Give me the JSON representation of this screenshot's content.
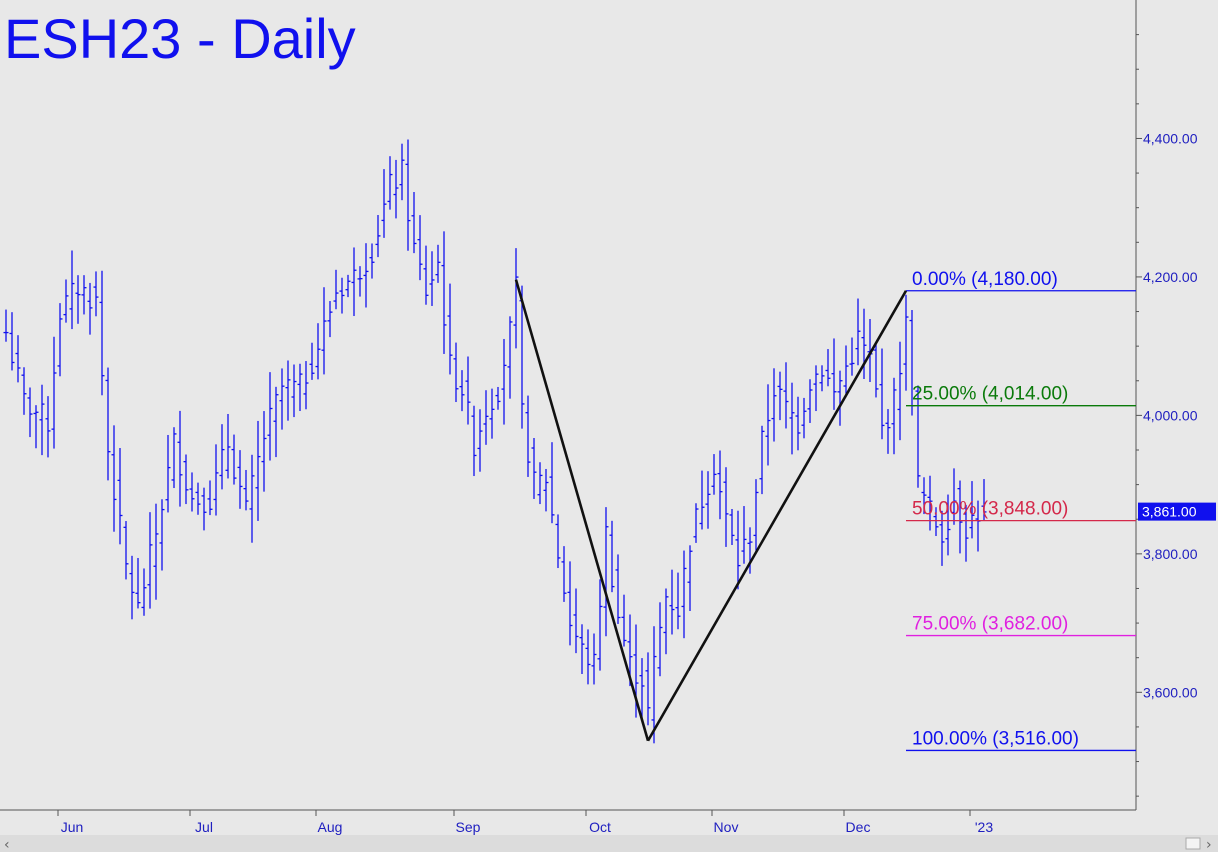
{
  "chart_data": {
    "type": "ohlc",
    "title": "ESH23 - Daily",
    "ylim": [
      3430,
      4600
    ],
    "y_ticks": [
      "3,600.00",
      "3,800.00",
      "4,000.00",
      "4,200.00",
      "4,400.00"
    ],
    "y_tick_values": [
      3600,
      3800,
      4000,
      4200,
      4400
    ],
    "x_months": [
      {
        "label": "Jun",
        "bar": 11
      },
      {
        "label": "Jul",
        "bar": 33
      },
      {
        "label": "Aug",
        "bar": 54
      },
      {
        "label": "Sep",
        "bar": 77
      },
      {
        "label": "Oct",
        "bar": 99
      },
      {
        "label": "Nov",
        "bar": 120
      },
      {
        "label": "Dec",
        "bar": 142
      },
      {
        "label": "'23",
        "bar": 163
      }
    ],
    "last_price": {
      "label": "3,861.00",
      "value": 3861,
      "color": "#1010ee"
    },
    "fib_levels": [
      {
        "label": "0.00% (4,180.00)",
        "value": 4180,
        "color": "#1010ee"
      },
      {
        "label": "25.00% (4,014.00)",
        "value": 4014,
        "color": "#0a7a0a"
      },
      {
        "label": "50.00% (3,848.00)",
        "value": 3848,
        "color": "#d4284a"
      },
      {
        "label": "75.00% (3,682.00)",
        "value": 3682,
        "color": "#e020e0"
      },
      {
        "label": "100.00% (3,516.00)",
        "value": 3516,
        "color": "#1010ee"
      }
    ],
    "fib_start_bar": 150,
    "pattern_points": [
      {
        "bar": 85,
        "value": 4196
      },
      {
        "bar": 107,
        "value": 3530
      },
      {
        "bar": 150,
        "value": 4180
      }
    ],
    "anchors": [
      [
        0,
        4120
      ],
      [
        3,
        4020
      ],
      [
        7,
        3990
      ],
      [
        9,
        4150
      ],
      [
        12,
        4185
      ],
      [
        15,
        4165
      ],
      [
        17,
        3950
      ],
      [
        20,
        3780
      ],
      [
        22,
        3720
      ],
      [
        25,
        3830
      ],
      [
        28,
        3960
      ],
      [
        31,
        3880
      ],
      [
        34,
        3880
      ],
      [
        37,
        3960
      ],
      [
        40,
        3860
      ],
      [
        43,
        3970
      ],
      [
        46,
        4040
      ],
      [
        49,
        4040
      ],
      [
        52,
        4100
      ],
      [
        55,
        4180
      ],
      [
        58,
        4200
      ],
      [
        61,
        4240
      ],
      [
        64,
        4330
      ],
      [
        66,
        4350
      ],
      [
        68,
        4240
      ],
      [
        70,
        4180
      ],
      [
        72,
        4220
      ],
      [
        74,
        4070
      ],
      [
        76,
        4040
      ],
      [
        78,
        3960
      ],
      [
        80,
        4010
      ],
      [
        82,
        4040
      ],
      [
        84,
        4120
      ],
      [
        85,
        4180
      ],
      [
        86,
        4000
      ],
      [
        88,
        3900
      ],
      [
        90,
        3910
      ],
      [
        92,
        3800
      ],
      [
        94,
        3700
      ],
      [
        96,
        3660
      ],
      [
        98,
        3640
      ],
      [
        100,
        3830
      ],
      [
        102,
        3710
      ],
      [
        104,
        3640
      ],
      [
        106,
        3620
      ],
      [
        107,
        3570
      ],
      [
        108,
        3640
      ],
      [
        110,
        3740
      ],
      [
        112,
        3720
      ],
      [
        114,
        3820
      ],
      [
        116,
        3880
      ],
      [
        118,
        3930
      ],
      [
        120,
        3850
      ],
      [
        122,
        3790
      ],
      [
        124,
        3830
      ],
      [
        126,
        3960
      ],
      [
        128,
        4040
      ],
      [
        130,
        4010
      ],
      [
        132,
        3990
      ],
      [
        134,
        4050
      ],
      [
        136,
        4070
      ],
      [
        138,
        4030
      ],
      [
        140,
        4070
      ],
      [
        142,
        4110
      ],
      [
        144,
        4080
      ],
      [
        146,
        3980
      ],
      [
        148,
        4020
      ],
      [
        150,
        4130
      ],
      [
        151,
        4030
      ],
      [
        152,
        3900
      ],
      [
        154,
        3860
      ],
      [
        156,
        3830
      ],
      [
        158,
        3880
      ],
      [
        160,
        3840
      ],
      [
        162,
        3860
      ],
      [
        163,
        3850
      ]
    ],
    "bar_count": 164
  }
}
